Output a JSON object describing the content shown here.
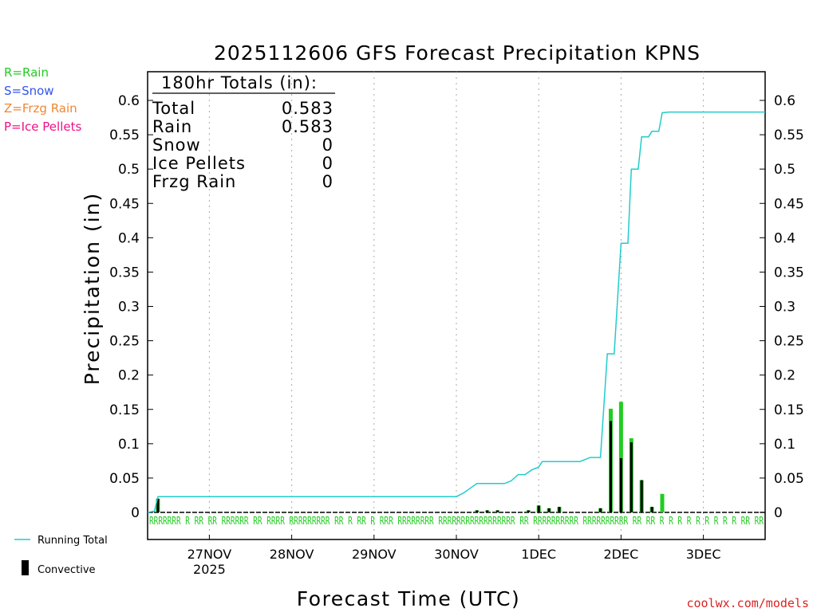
{
  "chart_data": {
    "type": "bar",
    "title": "2025112606 GFS Forecast Precipitation KPNS",
    "xlabel": "Forecast Time (UTC)",
    "ylabel": "Precipitation (in)",
    "ylim": [
      0,
      0.64
    ],
    "xlim_hours": [
      0,
      180
    ],
    "y_ticks": [
      "0",
      "0.05",
      "0.1",
      "0.15",
      "0.2",
      "0.25",
      "0.3",
      "0.35",
      "0.4",
      "0.45",
      "0.5",
      "0.55",
      "0.6"
    ],
    "x_ticks": [
      {
        "hour": 18,
        "label": "27NOV",
        "sub": "2025"
      },
      {
        "hour": 42,
        "label": "28NOV",
        "sub": ""
      },
      {
        "hour": 66,
        "label": "29NOV",
        "sub": ""
      },
      {
        "hour": 90,
        "label": "30NOV",
        "sub": ""
      },
      {
        "hour": 114,
        "label": "1DEC",
        "sub": ""
      },
      {
        "hour": 138,
        "label": "2DEC",
        "sub": ""
      },
      {
        "hour": 162,
        "label": "3DEC",
        "sub": ""
      }
    ],
    "precip_types_legend": [
      {
        "label": "R=Rain",
        "color": "#22cc22"
      },
      {
        "label": "S=Snow",
        "color": "#3355ee"
      },
      {
        "label": "Z=Frzg Rain",
        "color": "#ee8833"
      },
      {
        "label": "P=Ice Pellets",
        "color": "#ee1188"
      }
    ],
    "series_legend": [
      {
        "label": "Running Total",
        "color": "#22cccc"
      },
      {
        "label": "Convective",
        "color": "#000000"
      }
    ],
    "totals": {
      "header": "180hr Totals (in):",
      "rows": [
        {
          "label": "Total",
          "value": "0.583"
        },
        {
          "label": "Rain",
          "value": "0.583"
        },
        {
          "label": "Snow",
          "value": "0"
        },
        {
          "label": "Ice Pellets",
          "value": "0"
        },
        {
          "label": "Frzg Rain",
          "value": "0"
        }
      ]
    },
    "bars": [
      {
        "hour": 3,
        "total": 0.02,
        "convective": 0.02
      },
      {
        "hour": 96,
        "total": 0.003,
        "convective": 0.003
      },
      {
        "hour": 99,
        "total": 0.003,
        "convective": 0.003
      },
      {
        "hour": 102,
        "total": 0.003,
        "convective": 0.003
      },
      {
        "hour": 111,
        "total": 0.003,
        "convective": 0.003
      },
      {
        "hour": 114,
        "total": 0.01,
        "convective": 0.01
      },
      {
        "hour": 117,
        "total": 0.006,
        "convective": 0.006
      },
      {
        "hour": 120,
        "total": 0.008,
        "convective": 0.008
      },
      {
        "hour": 132,
        "total": 0.006,
        "convective": 0.006
      },
      {
        "hour": 135,
        "total": 0.151,
        "convective": 0.133
      },
      {
        "hour": 138,
        "total": 0.161,
        "convective": 0.079
      },
      {
        "hour": 141,
        "total": 0.108,
        "convective": 0.102
      },
      {
        "hour": 144,
        "total": 0.047,
        "convective": 0.047
      },
      {
        "hour": 147,
        "total": 0.008,
        "convective": 0.008
      },
      {
        "hour": 150,
        "total": 0.027,
        "convective": 0.0
      }
    ],
    "running_total": [
      [
        0,
        0
      ],
      [
        2,
        0.002
      ],
      [
        3,
        0.023
      ],
      [
        90,
        0.023
      ],
      [
        92,
        0.028
      ],
      [
        94,
        0.035
      ],
      [
        96,
        0.042
      ],
      [
        104,
        0.042
      ],
      [
        106,
        0.046
      ],
      [
        108,
        0.055
      ],
      [
        110,
        0.055
      ],
      [
        112,
        0.062
      ],
      [
        114,
        0.066
      ],
      [
        115,
        0.074
      ],
      [
        126,
        0.074
      ],
      [
        129,
        0.08
      ],
      [
        132,
        0.08
      ],
      [
        134,
        0.231
      ],
      [
        136,
        0.231
      ],
      [
        138,
        0.392
      ],
      [
        140,
        0.392
      ],
      [
        141,
        0.5
      ],
      [
        143,
        0.5
      ],
      [
        144,
        0.547
      ],
      [
        146,
        0.547
      ],
      [
        147,
        0.555
      ],
      [
        149,
        0.555
      ],
      [
        150,
        0.582
      ],
      [
        152,
        0.583
      ],
      [
        180,
        0.583
      ]
    ],
    "rain_markers_text": "RRRRRRR R RR RR RRRRRR RR RRRR RRRRRRRRR RR R RR R RRR RRRRRRRR RRRRRRRRRRRRRRRRR RR RRRRRRRRRR RRRRRRRRRR RR RR R R R R R R R R R RR RR"
  },
  "credit": "coolwx.com/models"
}
